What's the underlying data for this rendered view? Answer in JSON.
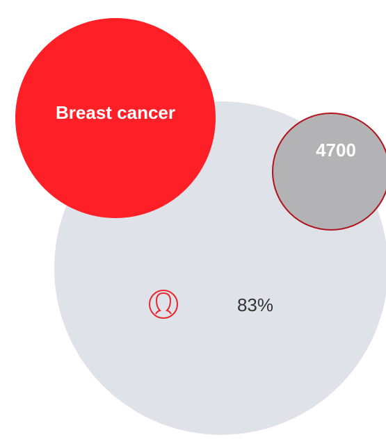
{
  "title": "Breast cancer",
  "count": "4700",
  "share": "83%"
}
